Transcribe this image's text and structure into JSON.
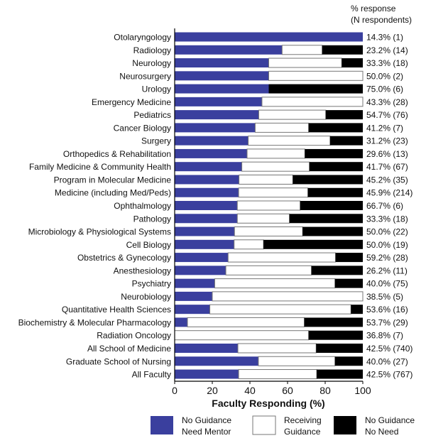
{
  "chart_data": {
    "type": "bar",
    "orientation": "horizontal",
    "stacked": true,
    "xlabel": "Faculty Responding (%)",
    "xlim": [
      0,
      100
    ],
    "xticks": [
      "0",
      "20",
      "40",
      "60",
      "80",
      "100"
    ],
    "right_header": [
      "% response",
      "(N respondents)"
    ],
    "categories": [
      "Otolaryngology",
      "Radiology",
      "Neurology",
      "Neurosurgery",
      "Urology",
      "Emergency Medicine",
      "Pediatrics",
      "Cancer Biology",
      "Surgery",
      "Orthopedics & Rehabilitation",
      "Family Medicine & Community Health",
      "Program in Molecular Medicine",
      "Medicine (including Med/Peds)",
      "Ophthalmology",
      "Pathology",
      "Microbiology & Physiological Systems",
      "Cell Biology",
      "Obstetrics & Gynecology",
      "Anesthesiology",
      "Psychiatry",
      "Neurobiology",
      "Quantitative Health Sciences",
      "Biochemistry & Molecular Pharmacology",
      "Radiation Oncology",
      "All School of Medicine",
      "Graduate School of Nursing",
      "All Faculty"
    ],
    "response_labels": [
      "14.3% (1)",
      "23.2% (14)",
      "33.3% (18)",
      "50.0% (2)",
      "75.0% (6)",
      "43.3% (28)",
      "54.7% (76)",
      "41.2% (7)",
      "31.2% (23)",
      "29.6% (13)",
      "41.7% (67)",
      "45.2% (35)",
      "45.9% (214)",
      "66.7% (6)",
      "33.3% (18)",
      "50.0% (22)",
      "50.0% (19)",
      "59.2% (28)",
      "26.2% (11)",
      "40.0% (75)",
      "38.5% (5)",
      "53.6% (16)",
      "53.7% (29)",
      "36.8% (7)",
      "42.5% (740)",
      "40.0% (27)",
      "42.5% (767)"
    ],
    "series": [
      {
        "name": "No Guidance Need Mentor",
        "color": "#3a3f9e",
        "values": [
          100,
          57.1,
          50,
          50,
          50,
          46.4,
          44.7,
          42.8,
          39.1,
          38.5,
          35.7,
          34.2,
          34,
          33.3,
          33.3,
          31.8,
          31.6,
          28.4,
          27.2,
          21.3,
          20,
          18.7,
          6.8,
          0,
          33.6,
          44.5,
          34
        ]
      },
      {
        "name": "Receiving Guidance",
        "color": "#ffffff",
        "values": [
          0,
          21.3,
          38.8,
          50,
          0,
          53.6,
          35.6,
          28.4,
          43.5,
          30.7,
          35.9,
          28.6,
          36.8,
          33.4,
          27.7,
          36.2,
          15.6,
          57.1,
          45.5,
          63.9,
          80,
          75,
          62.1,
          71.2,
          41.6,
          40.7,
          41.5
        ]
      },
      {
        "name": "No Guidance No Need",
        "color": "#000000",
        "values": [
          0,
          21.6,
          11.2,
          0,
          50,
          0,
          19.7,
          28.8,
          17.4,
          30.8,
          28.4,
          37.2,
          29.2,
          33.3,
          39,
          32,
          52.8,
          14.5,
          27.3,
          14.8,
          0,
          6.3,
          31.1,
          28.8,
          24.8,
          14.8,
          24.5
        ]
      }
    ],
    "legend": {
      "placement": "bottom",
      "labels": [
        [
          "No Guidance",
          "Need Mentor"
        ],
        [
          "Receiving",
          "Guidance"
        ],
        [
          "No Guidance",
          "No Need"
        ]
      ]
    }
  }
}
